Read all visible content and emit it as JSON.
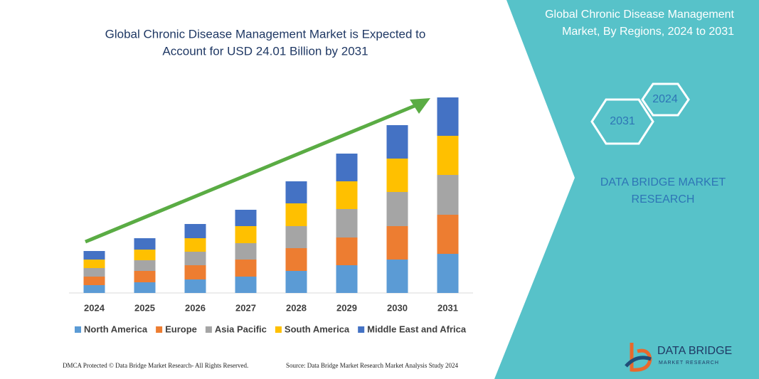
{
  "chart_data": {
    "type": "bar",
    "stacked": true,
    "title": [
      "Global Chronic Disease Management Market is Expected to",
      "Account for USD 24.01 Billion by 2031"
    ],
    "categories": [
      "2024",
      "2025",
      "2026",
      "2027",
      "2028",
      "2029",
      "2030",
      "2031"
    ],
    "series": [
      {
        "name": "North America",
        "color": "#5b9bd5",
        "values": [
          11,
          15,
          19,
          23,
          31,
          39,
          47,
          55
        ]
      },
      {
        "name": "Europe",
        "color": "#ed7d31",
        "values": [
          12,
          16,
          20,
          24,
          32,
          39,
          47,
          55
        ]
      },
      {
        "name": "Asia Pacific",
        "color": "#a5a5a5",
        "values": [
          12,
          15,
          19,
          23,
          31,
          40,
          48,
          56
        ]
      },
      {
        "name": "South America",
        "color": "#ffc000",
        "values": [
          12,
          15,
          19,
          24,
          32,
          39,
          47,
          55
        ]
      },
      {
        "name": "Middle East and Africa",
        "color": "#4472c4",
        "values": [
          12,
          16,
          20,
          23,
          31,
          39,
          47,
          54
        ]
      }
    ],
    "ylim": [
      0,
      280
    ]
  },
  "panel": {
    "title": [
      "Global Chronic Disease Management",
      "Market, By Regions, 2024 to 2031"
    ],
    "hex_labels": [
      "2024",
      "2031"
    ],
    "brand": [
      "DATA BRIDGE MARKET",
      "RESEARCH"
    ]
  },
  "footer": {
    "left": "DMCA Protected © Data Bridge Market Research- All Rights Reserved.",
    "right": "Source: Data Bridge Market Research Market Analysis Study 2024"
  },
  "logo": {
    "name": "DATA BRIDGE",
    "tagline": "MARKET RESEARCH"
  }
}
